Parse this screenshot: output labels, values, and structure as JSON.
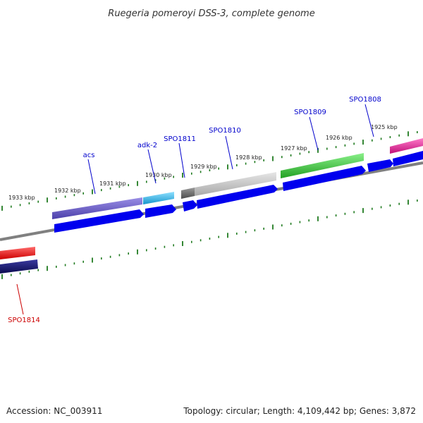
{
  "title": "Ruegeria pomeroyi DSS-3, complete genome",
  "footer": {
    "accession": "Accession: NC_003911",
    "summary": "Topology: circular; Length: 4,109,442 bp; Genes: 3,872"
  },
  "scale_labels": [
    "1933 kbp",
    "1932 kbp",
    "1931 kbp",
    "1930 kbp",
    "1929 kbp",
    "1928 kbp",
    "1927 kbp",
    "1926 kbp",
    "1925 kbp"
  ],
  "gene_labels": [
    {
      "text": "acs",
      "color": "#0000cc"
    },
    {
      "text": "adk-2",
      "color": "#0000cc"
    },
    {
      "text": "SPO1811",
      "color": "#0000cc"
    },
    {
      "text": "SPO1810",
      "color": "#0000cc"
    },
    {
      "text": "SPO1809",
      "color": "#0000cc"
    },
    {
      "text": "SPO1808",
      "color": "#0000cc"
    },
    {
      "text": "SPO1814",
      "color": "#cc0000"
    }
  ],
  "colors": {
    "tick": "#1f7a1f",
    "backbone": "#808080",
    "gene_blue": "#0000ee",
    "gene_navy": "#1a1a6e",
    "acs": "#6a5acd",
    "adk": "#29b6e6",
    "spo1811": "#6e6e6e",
    "spo1810": "#c0c0c0",
    "spo1809": "#3cbf3c",
    "spo1808": "#e0208f",
    "spo1814": "#ee1111"
  }
}
